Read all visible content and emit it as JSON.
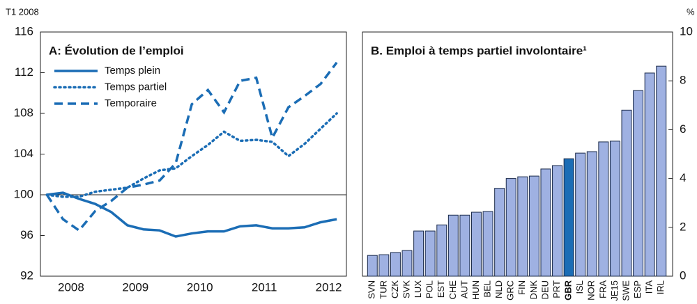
{
  "chart_data": [
    {
      "type": "line",
      "title": "A: Évolution de l’emploi",
      "y_label": "T1 2008",
      "x": [
        2008,
        2008.25,
        2008.5,
        2008.75,
        2009,
        2009.25,
        2009.5,
        2009.75,
        2010,
        2010.25,
        2010.5,
        2010.75,
        2011,
        2011.25,
        2011.5,
        2011.75,
        2012,
        2012.25,
        2012.5
      ],
      "series": [
        {
          "name": "Temps plein",
          "color": "#1b6db5",
          "dash": "solid",
          "values": [
            100,
            100.2,
            99.6,
            99.1,
            98.3,
            97.0,
            96.6,
            96.5,
            95.9,
            96.2,
            96.4,
            96.4,
            96.9,
            97.0,
            96.7,
            96.7,
            96.8,
            97.3,
            97.6
          ]
        },
        {
          "name": "Temps partiel",
          "color": "#1b6db5",
          "dash": "dotted",
          "values": [
            100,
            99.8,
            99.8,
            100.3,
            100.5,
            100.7,
            101.6,
            102.4,
            102.6,
            103.8,
            104.9,
            106.2,
            105.3,
            105.4,
            105.2,
            103.8,
            105.0,
            106.5,
            108.0
          ]
        },
        {
          "name": "Temporaire",
          "color": "#1b6db5",
          "dash": "dashed",
          "values": [
            100,
            97.6,
            96.5,
            98.4,
            99.4,
            100.7,
            101.0,
            101.4,
            103.1,
            108.9,
            110.3,
            108.1,
            111.2,
            111.5,
            105.6,
            108.6,
            109.7,
            110.9,
            113.0
          ]
        }
      ],
      "reference_line": 100,
      "xlim": [
        2007.9,
        2012.65
      ],
      "xticks": [
        {
          "value": 2008.375,
          "label": "2008"
        },
        {
          "value": 2009.375,
          "label": "2009"
        },
        {
          "value": 2010.375,
          "label": "2010"
        },
        {
          "value": 2011.375,
          "label": "2011"
        },
        {
          "value": 2012.375,
          "label": "2012"
        }
      ],
      "ylim": [
        92,
        116
      ],
      "yticks": [
        92,
        96,
        100,
        104,
        108,
        112,
        116
      ],
      "legend": "upper-left"
    },
    {
      "type": "bar",
      "title": "B. Emploi à temps partiel involontaire¹",
      "y_label": "%",
      "categories": [
        "SVN",
        "TUR",
        "CZK",
        "SVK",
        "LUX",
        "POL",
        "EST",
        "CHE",
        "AUT",
        "HUN",
        "BEL",
        "NLD",
        "GRC",
        "FIN",
        "DNK",
        "DEU",
        "PRT",
        "GBR",
        "ISL",
        "NOR",
        "FRA",
        "JE15",
        "SWE",
        "ESP",
        "ITA",
        "IRL"
      ],
      "values": [
        0.85,
        0.88,
        0.97,
        1.05,
        1.85,
        1.85,
        2.1,
        2.5,
        2.5,
        2.62,
        2.65,
        3.6,
        4.0,
        4.07,
        4.1,
        4.39,
        4.53,
        4.81,
        5.04,
        5.1,
        5.5,
        5.53,
        6.8,
        7.6,
        8.32,
        8.6
      ],
      "color": "#9fb1e2",
      "highlight": "GBR",
      "highlight_color": "#1b6db5",
      "ylim": [
        0,
        10
      ],
      "yticks": [
        0,
        2,
        4,
        6,
        8,
        10
      ]
    }
  ]
}
